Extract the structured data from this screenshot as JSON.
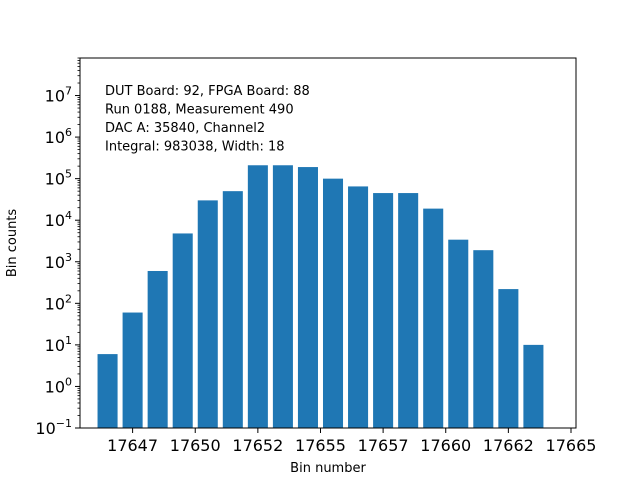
{
  "chart_data": {
    "type": "bar",
    "scale_y": "log",
    "xlabel": "Bin number",
    "ylabel": "Bin counts",
    "xlim": [
      17645.4,
      17665.2
    ],
    "ylim": [
      0.1,
      80000000
    ],
    "grid": false,
    "bar_color": "#1f77b4",
    "x_ticks": [
      {
        "value": 17647.5,
        "label": "17647"
      },
      {
        "value": 17650.0,
        "label": "17650"
      },
      {
        "value": 17652.5,
        "label": "17652"
      },
      {
        "value": 17655.0,
        "label": "17655"
      },
      {
        "value": 17657.5,
        "label": "17657"
      },
      {
        "value": 17660.0,
        "label": "17660"
      },
      {
        "value": 17662.5,
        "label": "17662"
      },
      {
        "value": 17665.0,
        "label": "17665"
      }
    ],
    "y_ticks": [
      {
        "exp": "−1"
      },
      {
        "exp": "0"
      },
      {
        "exp": "1"
      },
      {
        "exp": "2"
      },
      {
        "exp": "3"
      },
      {
        "exp": "4"
      },
      {
        "exp": "5"
      },
      {
        "exp": "6"
      },
      {
        "exp": "7"
      }
    ],
    "x": [
      17646.5,
      17647.5,
      17648.5,
      17649.5,
      17650.5,
      17651.5,
      17652.5,
      17653.5,
      17654.5,
      17655.5,
      17656.5,
      17657.5,
      17658.5,
      17659.5,
      17660.5,
      17661.5,
      17662.5,
      17663.5
    ],
    "values": [
      6,
      60,
      600,
      4800,
      30000,
      50000,
      210000,
      210000,
      190000,
      100000,
      65000,
      45000,
      45000,
      19000,
      3400,
      1900,
      220,
      10
    ],
    "annotations": [
      "DUT Board: 92, FPGA Board: 88",
      "Run 0188, Measurement 490",
      "DAC A: 35840, Channel2",
      "Integral: 983038, Width: 18"
    ]
  }
}
